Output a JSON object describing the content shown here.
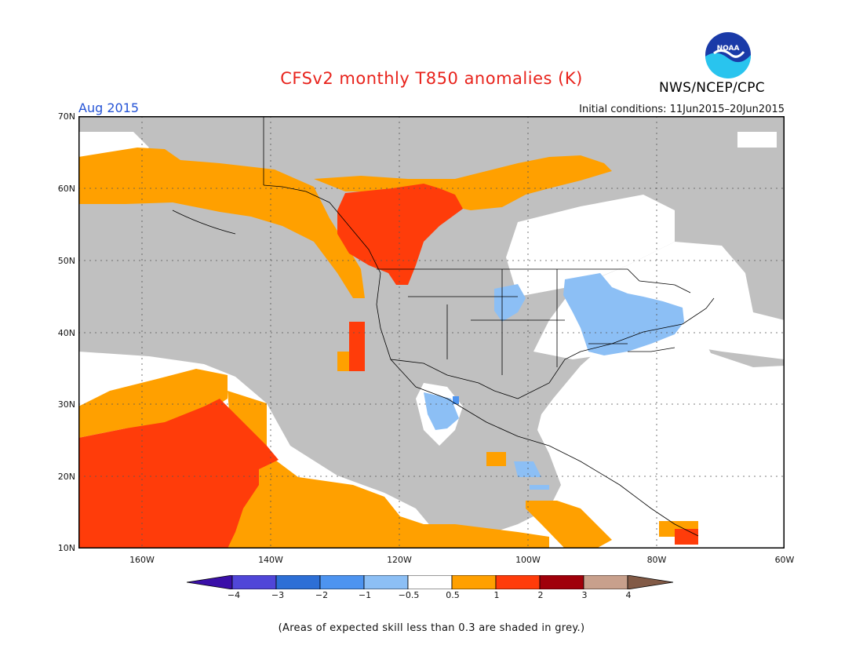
{
  "title": "CFSv2 monthly T850 anomalies (K)",
  "agency": "NWS/NCEP/CPC",
  "logo_text": "NOAA",
  "forecast_month": "Aug 2015",
  "initial_conditions": "Initial conditions: 11Jun2015–20Jun2015",
  "map": {
    "lat_labels": [
      "70N",
      "60N",
      "50N",
      "40N",
      "30N",
      "20N",
      "10N"
    ],
    "lon_labels": [
      "160W",
      "140W",
      "120W",
      "100W",
      "80W",
      "60W"
    ],
    "gridlines": "dotted"
  },
  "legend": {
    "levels": [
      "−4",
      "−3",
      "−2",
      "−1",
      "−0.5",
      "0.5",
      "1",
      "2",
      "3",
      "4"
    ],
    "colors": {
      "below_-4": "#3a0fa8",
      "-4_-3": "#5046d8",
      "-3_-2": "#2d6fd6",
      "-2_-1": "#4d94f0",
      "-1_-0.5": "#8cbff5",
      "-0.5_0.5": "#ffffff",
      "0.5_1": "#ffa000",
      "1_2": "#ff3c0a",
      "2_3": "#a0000a",
      "3_4": "#c8a08c",
      "above_4": "#825a46"
    },
    "skill_mask_color": "#c0c0c0"
  },
  "footnote": "(Areas of expected skill less than 0.3 are shaded in grey.)"
}
